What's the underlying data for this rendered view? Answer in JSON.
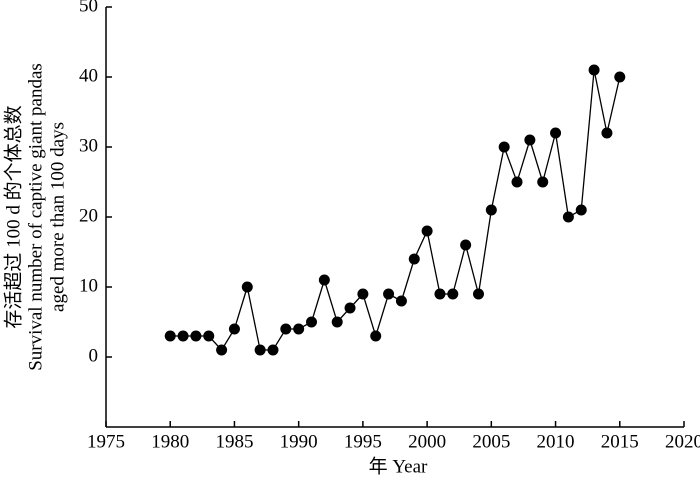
{
  "chart_data": {
    "type": "line",
    "x_label": "年 Year",
    "y_label": [
      "存活超过 100 d 的个体总数",
      "Survival number of captive giant pandas",
      "aged more than 100 days"
    ],
    "x": [
      1980,
      1981,
      1982,
      1983,
      1984,
      1985,
      1986,
      1987,
      1988,
      1989,
      1990,
      1991,
      1992,
      1993,
      1994,
      1995,
      1996,
      1997,
      1998,
      1999,
      2000,
      2001,
      2002,
      2003,
      2004,
      2005,
      2006,
      2007,
      2008,
      2009,
      2010,
      2011,
      2012,
      2013,
      2014,
      2015
    ],
    "values": [
      3,
      3,
      3,
      3,
      1,
      4,
      10,
      1,
      1,
      4,
      4,
      5,
      11,
      5,
      7,
      9,
      3,
      9,
      8,
      14,
      18,
      9,
      9,
      16,
      9,
      21,
      30,
      25,
      31,
      25,
      32,
      20,
      21,
      41,
      32,
      40
    ],
    "color": "#000000",
    "xlim": [
      1975,
      2020
    ],
    "xticks": [
      1975,
      1980,
      1985,
      1990,
      1995,
      2000,
      2005,
      2010,
      2015,
      2020
    ],
    "ylim": [
      -10,
      50
    ],
    "yticks": [
      0,
      10,
      20,
      30,
      40,
      50
    ]
  }
}
